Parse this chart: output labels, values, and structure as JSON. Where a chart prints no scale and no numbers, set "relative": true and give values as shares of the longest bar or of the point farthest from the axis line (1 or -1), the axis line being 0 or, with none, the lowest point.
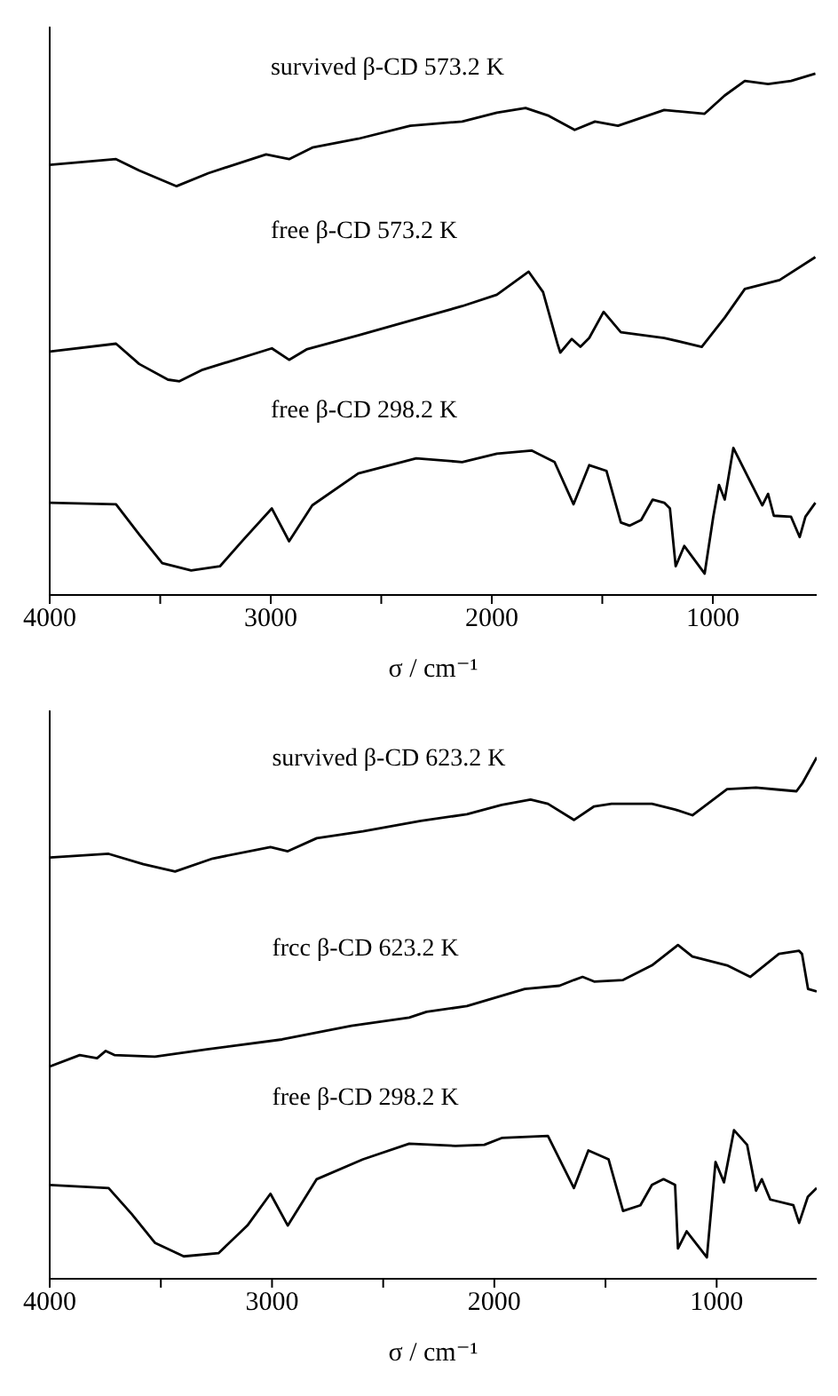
{
  "chart_data": [
    {
      "type": "line",
      "relative": true,
      "xlabel": "σ / cm⁻¹",
      "xlim": [
        4000,
        530
      ],
      "xticks": [
        4000,
        {
          "value": 3500,
          "label": null
        },
        3000,
        {
          "value": 2500,
          "label": null
        },
        2000,
        {
          "value": 1500,
          "label": null
        },
        1000
      ],
      "tick_labels": "x",
      "series": [
        {
          "name": "survived β-CD 573.2 K",
          "color": "#000000",
          "x": [
            4000,
            3700,
            3595,
            3426,
            3282,
            3021,
            2917,
            2812,
            2604,
            2369,
            2134,
            1977,
            1847,
            1742,
            1625,
            1533,
            1429,
            1220,
            1037,
            946,
            855,
            750,
            646,
            536
          ],
          "values": [
            0.825,
            0.836,
            0.814,
            0.784,
            0.809,
            0.845,
            0.836,
            0.858,
            0.875,
            0.9,
            0.908,
            0.925,
            0.934,
            0.919,
            0.892,
            0.908,
            0.9,
            0.93,
            0.923,
            0.958,
            0.986,
            0.98,
            0.986,
            1.0
          ]
        },
        {
          "name": "free β-CD 573.2 K",
          "color": "#000000",
          "x": [
            4000,
            3700,
            3595,
            3465,
            3413,
            3308,
            2995,
            2917,
            2838,
            2760,
            2604,
            2369,
            2134,
            1977,
            1833,
            1768,
            1703,
            1690,
            1638,
            1599,
            1559,
            1494,
            1416,
            1220,
            1050,
            946,
            855,
            698,
            536
          ],
          "values": [
            0.467,
            0.482,
            0.443,
            0.413,
            0.41,
            0.432,
            0.473,
            0.451,
            0.471,
            0.48,
            0.498,
            0.526,
            0.554,
            0.576,
            0.62,
            0.581,
            0.482,
            0.465,
            0.491,
            0.476,
            0.493,
            0.543,
            0.504,
            0.493,
            0.476,
            0.532,
            0.587,
            0.604,
            0.648
          ]
        },
        {
          "name": "free β-CD 298.2 K",
          "color": "#000000",
          "x": [
            4000,
            3700,
            3595,
            3491,
            3360,
            3230,
            3126,
            2995,
            2917,
            2812,
            2604,
            2342,
            2134,
            1977,
            1820,
            1716,
            1630,
            1559,
            1481,
            1416,
            1377,
            1324,
            1272,
            1220,
            1194,
            1168,
            1129,
            1037,
            998,
            972,
            946,
            907,
            842,
            776,
            750,
            724,
            646,
            607,
            581,
            536
          ],
          "values": [
            0.177,
            0.174,
            0.116,
            0.061,
            0.047,
            0.055,
            0.105,
            0.166,
            0.103,
            0.172,
            0.233,
            0.262,
            0.255,
            0.271,
            0.277,
            0.255,
            0.174,
            0.249,
            0.238,
            0.139,
            0.133,
            0.144,
            0.183,
            0.177,
            0.166,
            0.055,
            0.094,
            0.041,
            0.15,
            0.211,
            0.183,
            0.282,
            0.227,
            0.172,
            0.194,
            0.152,
            0.15,
            0.111,
            0.15,
            0.177
          ]
        }
      ]
    },
    {
      "type": "line",
      "relative": true,
      "xlabel": "σ / cm⁻¹",
      "xlim": [
        4000,
        550
      ],
      "xticks": [
        4000,
        {
          "value": 3500,
          "label": null
        },
        3000,
        {
          "value": 2500,
          "label": null
        },
        2000,
        {
          "value": 1500,
          "label": null
        },
        1000
      ],
      "tick_labels": "x",
      "series": [
        {
          "name": "survived β-CD 623.2 K",
          "color": "#000000",
          "x": [
            4000,
            3735,
            3579,
            3436,
            3267,
            3007,
            2929,
            2799,
            2591,
            2331,
            2123,
            1967,
            1837,
            1759,
            1642,
            1551,
            1473,
            1291,
            1187,
            1109,
            953,
            823,
            720,
            641,
            615,
            550
          ],
          "values": [
            0.808,
            0.815,
            0.795,
            0.781,
            0.806,
            0.828,
            0.82,
            0.845,
            0.858,
            0.878,
            0.891,
            0.909,
            0.919,
            0.911,
            0.88,
            0.906,
            0.911,
            0.911,
            0.9,
            0.889,
            0.939,
            0.942,
            0.938,
            0.935,
            0.95,
            1.0
          ]
        },
        {
          "name": "frcc β-CD 623.2 K",
          "color": "#000000",
          "x": [
            4000,
            3865,
            3787,
            3748,
            3709,
            3527,
            3293,
            2955,
            2643,
            2383,
            2305,
            2123,
            1863,
            1707,
            1642,
            1603,
            1551,
            1421,
            1291,
            1174,
            1109,
            953,
            849,
            720,
            629,
            616,
            589,
            550
          ],
          "values": [
            0.407,
            0.429,
            0.423,
            0.437,
            0.429,
            0.426,
            0.44,
            0.459,
            0.485,
            0.501,
            0.512,
            0.523,
            0.556,
            0.562,
            0.573,
            0.579,
            0.57,
            0.573,
            0.601,
            0.64,
            0.618,
            0.601,
            0.579,
            0.623,
            0.629,
            0.623,
            0.556,
            0.551
          ]
        },
        {
          "name": "free β-CD 298.2 K",
          "color": "#000000",
          "x": [
            4000,
            3735,
            3631,
            3527,
            3397,
            3241,
            3111,
            3007,
            2929,
            2799,
            2591,
            2383,
            2175,
            2045,
            1967,
            1759,
            1642,
            1577,
            1486,
            1421,
            1343,
            1291,
            1239,
            1187,
            1174,
            1135,
            1044,
            1005,
            967,
            922,
            863,
            823,
            797,
            759,
            655,
            629,
            590,
            550
          ],
          "values": [
            0.18,
            0.174,
            0.124,
            0.069,
            0.043,
            0.049,
            0.102,
            0.163,
            0.102,
            0.191,
            0.229,
            0.259,
            0.255,
            0.257,
            0.27,
            0.274,
            0.174,
            0.246,
            0.229,
            0.13,
            0.141,
            0.18,
            0.191,
            0.18,
            0.058,
            0.091,
            0.041,
            0.224,
            0.185,
            0.285,
            0.257,
            0.169,
            0.191,
            0.152,
            0.141,
            0.107,
            0.157,
            0.174
          ]
        }
      ]
    }
  ]
}
